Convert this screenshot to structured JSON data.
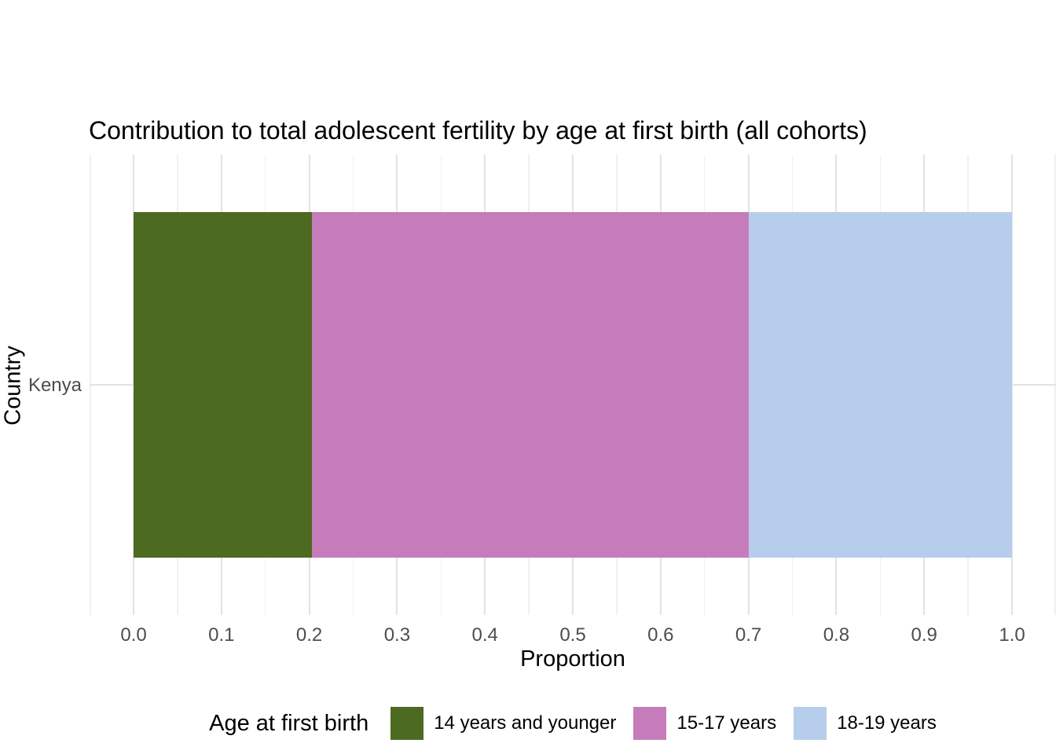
{
  "title": "Contribution to total adolescent fertility by age at first birth (all cohorts)",
  "x_axis": {
    "label": "Proportion",
    "tick_labels": [
      "0.0",
      "0.1",
      "0.2",
      "0.3",
      "0.4",
      "0.5",
      "0.6",
      "0.7",
      "0.8",
      "0.9",
      "1.0"
    ]
  },
  "y_axis": {
    "label": "Country",
    "tick_labels": [
      "Kenya"
    ]
  },
  "legend": {
    "title": "Age at first birth",
    "items": [
      {
        "label": "14 years and younger",
        "color": "#4D6A21"
      },
      {
        "label": "15-17 years",
        "color": "#C67CBB"
      },
      {
        "label": "18-19 years",
        "color": "#B7CDEC"
      }
    ]
  },
  "chart_data": {
    "type": "bar",
    "orientation": "horizontal",
    "stacked": true,
    "title": "Contribution to total adolescent fertility by age at first birth (all cohorts)",
    "xlabel": "Proportion",
    "ylabel": "Country",
    "categories": [
      "Kenya"
    ],
    "series": [
      {
        "name": "14 years and younger",
        "values": [
          0.203
        ],
        "color": "#4D6A21"
      },
      {
        "name": "15-17 years",
        "values": [
          0.497
        ],
        "color": "#C67CBB"
      },
      {
        "name": "18-19 years",
        "values": [
          0.3
        ],
        "color": "#B7CDEC"
      }
    ],
    "xlim": [
      0,
      1
    ],
    "x_major_ticks": [
      0,
      0.1,
      0.2,
      0.3,
      0.4,
      0.5,
      0.6,
      0.7,
      0.8,
      0.9,
      1.0
    ],
    "x_minor_ticks": [
      -0.05,
      0.05,
      0.15,
      0.25,
      0.35,
      0.45,
      0.55,
      0.65,
      0.75,
      0.85,
      0.95,
      1.05
    ],
    "grid": "vertical major+minor, horizontal major at category",
    "legend_position": "bottom",
    "legend_title": "Age at first birth"
  },
  "colors": {
    "background": "#ffffff",
    "grid_major": "#e3e3e3",
    "grid_minor": "#f0f0f0",
    "axis_text": "#4d4d4d",
    "text": "#000000"
  }
}
